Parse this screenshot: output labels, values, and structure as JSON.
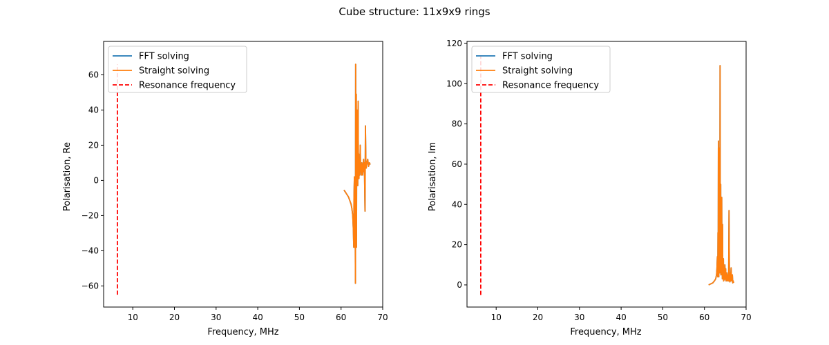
{
  "figure": {
    "suptitle": "Cube structure: 11x9x9 rings"
  },
  "colors": {
    "fft": "#1f77b4",
    "straight": "#ff7f0e",
    "resonance": "#ff0000",
    "axis": "#000000",
    "legend_border": "#cccccc"
  },
  "chart_data": [
    {
      "type": "line",
      "xlabel": "Frequency, MHz",
      "ylabel": "Polarisation, Re",
      "xlim": [
        3.0,
        70.0
      ],
      "ylim": [
        -72.0,
        79.0
      ],
      "xticks": [
        10,
        20,
        30,
        40,
        50,
        60,
        70
      ],
      "yticks": [
        -60,
        -40,
        -20,
        0,
        20,
        40,
        60
      ],
      "grid": false,
      "legend_position": "upper-left",
      "resonance": {
        "name": "Resonance frequency",
        "x": 6.3,
        "y_range": [
          -65.0,
          66.0
        ],
        "style": "dashed"
      },
      "series": [
        {
          "name": "FFT solving",
          "x": [
            60.7,
            61.0,
            61.4,
            61.8,
            62.1,
            62.4,
            62.6,
            62.8,
            62.95,
            63.05,
            63.1,
            63.2,
            63.3,
            63.35,
            63.45,
            63.5,
            63.55,
            63.6,
            63.65,
            63.7,
            63.75,
            63.8,
            63.85,
            63.9,
            63.95,
            64.0,
            64.05,
            64.1,
            64.15,
            64.2,
            64.25,
            64.3,
            64.35,
            64.4,
            64.45,
            64.5,
            64.55,
            64.6,
            64.7,
            64.8,
            64.9,
            65.0,
            65.1,
            65.2,
            65.3,
            65.4,
            65.5,
            65.6,
            65.75,
            65.85,
            65.95,
            66.05,
            66.2,
            66.4,
            66.6,
            66.8,
            67.0
          ],
          "y": [
            -5.5,
            -6.5,
            -8.0,
            -9.5,
            -11.5,
            -13.5,
            -16.0,
            -20.0,
            -28.0,
            -38.0,
            -10.0,
            2.0,
            -38.0,
            2.0,
            -58.5,
            66.0,
            -20.0,
            10.0,
            49.0,
            -38.0,
            20.0,
            40.0,
            5.0,
            10.0,
            30.0,
            -3.0,
            20.0,
            45.0,
            10.0,
            5.0,
            15.0,
            1.0,
            10.0,
            5.0,
            12.0,
            3.0,
            8.0,
            20.0,
            5.0,
            8.0,
            3.0,
            10.0,
            6.0,
            3.0,
            8.0,
            12.0,
            5.0,
            10.0,
            -17.5,
            31.0,
            12.0,
            7.0,
            10.0,
            12.0,
            8.0,
            10.0,
            9.0
          ]
        },
        {
          "name": "Straight solving",
          "x": [
            60.7,
            61.0,
            61.4,
            61.8,
            62.1,
            62.4,
            62.6,
            62.8,
            62.95,
            63.05,
            63.1,
            63.2,
            63.3,
            63.35,
            63.45,
            63.5,
            63.55,
            63.6,
            63.65,
            63.7,
            63.75,
            63.8,
            63.85,
            63.9,
            63.95,
            64.0,
            64.05,
            64.1,
            64.15,
            64.2,
            64.25,
            64.3,
            64.35,
            64.4,
            64.45,
            64.5,
            64.55,
            64.6,
            64.7,
            64.8,
            64.9,
            65.0,
            65.1,
            65.2,
            65.3,
            65.4,
            65.5,
            65.6,
            65.75,
            65.85,
            65.95,
            66.05,
            66.2,
            66.4,
            66.6,
            66.8,
            67.0
          ],
          "y": [
            -5.5,
            -6.5,
            -8.0,
            -9.5,
            -11.5,
            -13.5,
            -16.0,
            -20.0,
            -28.0,
            -38.0,
            -10.0,
            2.0,
            -38.0,
            2.0,
            -58.5,
            66.0,
            -20.0,
            10.0,
            49.0,
            -38.0,
            20.0,
            40.0,
            5.0,
            10.0,
            30.0,
            -3.0,
            20.0,
            45.0,
            10.0,
            5.0,
            15.0,
            1.0,
            10.0,
            5.0,
            12.0,
            3.0,
            8.0,
            20.0,
            5.0,
            8.0,
            3.0,
            10.0,
            6.0,
            3.0,
            8.0,
            12.0,
            5.0,
            10.0,
            -17.5,
            31.0,
            12.0,
            7.0,
            10.0,
            12.0,
            8.0,
            10.0,
            9.0
          ]
        }
      ]
    },
    {
      "type": "line",
      "xlabel": "Frequency, MHz",
      "ylabel": "Polarisation, Im",
      "xlim": [
        3.0,
        70.0
      ],
      "ylim": [
        -11.0,
        121.0
      ],
      "xticks": [
        10,
        20,
        30,
        40,
        50,
        60,
        70
      ],
      "yticks": [
        0,
        20,
        40,
        60,
        80,
        100,
        120
      ],
      "grid": false,
      "legend_position": "upper-left",
      "resonance": {
        "name": "Resonance frequency",
        "x": 6.3,
        "y_range": [
          -5.0,
          114.0
        ],
        "style": "dashed"
      },
      "series": [
        {
          "name": "FFT solving",
          "x": [
            61.0,
            61.5,
            62.0,
            62.4,
            62.7,
            62.9,
            63.0,
            63.1,
            63.2,
            63.25,
            63.3,
            63.35,
            63.4,
            63.45,
            63.5,
            63.55,
            63.6,
            63.65,
            63.7,
            63.75,
            63.8,
            63.85,
            63.9,
            63.95,
            64.0,
            64.05,
            64.1,
            64.15,
            64.2,
            64.25,
            64.3,
            64.35,
            64.4,
            64.45,
            64.5,
            64.55,
            64.6,
            64.7,
            64.8,
            64.9,
            65.0,
            65.1,
            65.2,
            65.3,
            65.4,
            65.5,
            65.6,
            65.7,
            65.8,
            65.9,
            66.0,
            66.1,
            66.2,
            66.3,
            66.4,
            66.5,
            66.6,
            66.7,
            66.8,
            66.9,
            67.0
          ],
          "y": [
            0.0,
            0.5,
            1.0,
            2.0,
            3.0,
            5.0,
            8.0,
            14.0,
            4.0,
            26.0,
            8.0,
            71.5,
            10.0,
            4.0,
            68.0,
            20.0,
            8.0,
            40.0,
            6.0,
            109.0,
            30.0,
            10.0,
            50.0,
            5.0,
            35.0,
            8.0,
            20.0,
            43.5,
            5.0,
            15.0,
            3.0,
            30.0,
            5.0,
            8.0,
            3.0,
            13.0,
            2.0,
            5.0,
            2.5,
            10.0,
            3.0,
            8.0,
            2.0,
            4.0,
            6.0,
            2.0,
            3.0,
            5.0,
            2.0,
            37.0,
            3.0,
            1.5,
            6.0,
            2.0,
            8.5,
            3.0,
            2.0,
            5.0,
            1.0,
            2.0,
            1.0
          ]
        },
        {
          "name": "Straight solving",
          "x": [
            61.0,
            61.5,
            62.0,
            62.4,
            62.7,
            62.9,
            63.0,
            63.1,
            63.2,
            63.25,
            63.3,
            63.35,
            63.4,
            63.45,
            63.5,
            63.55,
            63.6,
            63.65,
            63.7,
            63.75,
            63.8,
            63.85,
            63.9,
            63.95,
            64.0,
            64.05,
            64.1,
            64.15,
            64.2,
            64.25,
            64.3,
            64.35,
            64.4,
            64.45,
            64.5,
            64.55,
            64.6,
            64.7,
            64.8,
            64.9,
            65.0,
            65.1,
            65.2,
            65.3,
            65.4,
            65.5,
            65.6,
            65.7,
            65.8,
            65.9,
            66.0,
            66.1,
            66.2,
            66.3,
            66.4,
            66.5,
            66.6,
            66.7,
            66.8,
            66.9,
            67.0
          ],
          "y": [
            0.0,
            0.5,
            1.0,
            2.0,
            3.0,
            5.0,
            8.0,
            14.0,
            4.0,
            26.0,
            8.0,
            71.5,
            10.0,
            4.0,
            68.0,
            20.0,
            8.0,
            40.0,
            6.0,
            109.0,
            30.0,
            10.0,
            50.0,
            5.0,
            35.0,
            8.0,
            20.0,
            43.5,
            5.0,
            15.0,
            3.0,
            30.0,
            5.0,
            8.0,
            3.0,
            13.0,
            2.0,
            5.0,
            2.5,
            10.0,
            3.0,
            8.0,
            2.0,
            4.0,
            6.0,
            2.0,
            3.0,
            5.0,
            2.0,
            37.0,
            3.0,
            1.5,
            6.0,
            2.0,
            8.5,
            3.0,
            2.0,
            5.0,
            1.0,
            2.0,
            1.0
          ]
        }
      ]
    }
  ]
}
